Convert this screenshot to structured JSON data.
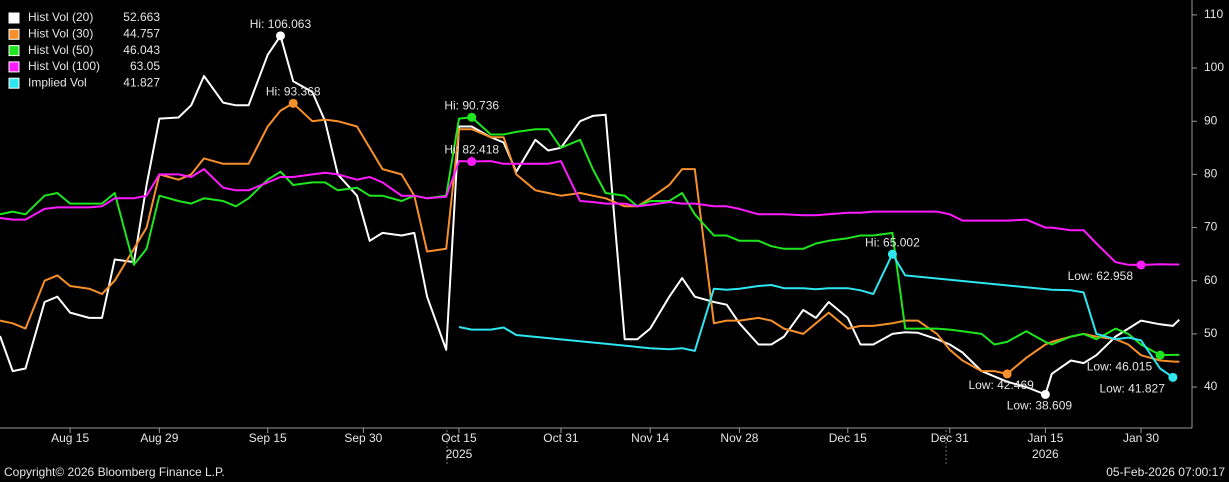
{
  "chart_data": {
    "type": "line",
    "x": [
      "2025-08-04",
      "2025-08-06",
      "2025-08-08",
      "2025-08-11",
      "2025-08-13",
      "2025-08-15",
      "2025-08-18",
      "2025-08-20",
      "2025-08-22",
      "2025-08-25",
      "2025-08-27",
      "2025-08-29",
      "2025-09-01",
      "2025-09-03",
      "2025-09-05",
      "2025-09-08",
      "2025-09-10",
      "2025-09-12",
      "2025-09-15",
      "2025-09-17",
      "2025-09-19",
      "2025-09-22",
      "2025-09-24",
      "2025-09-26",
      "2025-09-29",
      "2025-10-01",
      "2025-10-03",
      "2025-10-06",
      "2025-10-08",
      "2025-10-10",
      "2025-10-13",
      "2025-10-15",
      "2025-10-17",
      "2025-10-20",
      "2025-10-22",
      "2025-10-24",
      "2025-10-27",
      "2025-10-29",
      "2025-10-31",
      "2025-11-03",
      "2025-11-05",
      "2025-11-07",
      "2025-11-10",
      "2025-11-12",
      "2025-11-14",
      "2025-11-17",
      "2025-11-19",
      "2025-11-21",
      "2025-11-24",
      "2025-11-26",
      "2025-11-28",
      "2025-12-01",
      "2025-12-03",
      "2025-12-05",
      "2025-12-08",
      "2025-12-10",
      "2025-12-12",
      "2025-12-15",
      "2025-12-17",
      "2025-12-19",
      "2025-12-22",
      "2025-12-24",
      "2025-12-26",
      "2025-12-29",
      "2025-12-31",
      "2026-01-02",
      "2026-01-05",
      "2026-01-07",
      "2026-01-09",
      "2026-01-12",
      "2026-01-15",
      "2026-01-16",
      "2026-01-19",
      "2026-01-21",
      "2026-01-23",
      "2026-01-26",
      "2026-01-28",
      "2026-01-30",
      "2026-02-02",
      "2026-02-04",
      "2026-02-05"
    ],
    "xlim": [
      "2025-08-04",
      "2026-02-07"
    ],
    "xticks": [
      {
        "value": "2025-08-15",
        "label": "Aug 15"
      },
      {
        "value": "2025-08-29",
        "label": "Aug 29"
      },
      {
        "value": "2025-09-15",
        "label": "Sep 15"
      },
      {
        "value": "2025-09-30",
        "label": "Sep 30"
      },
      {
        "value": "2025-10-15",
        "label": "Oct 15"
      },
      {
        "value": "2025-10-31",
        "label": "Oct 31"
      },
      {
        "value": "2025-11-14",
        "label": "Nov 14"
      },
      {
        "value": "2025-11-28",
        "label": "Nov 28"
      },
      {
        "value": "2025-12-15",
        "label": "Dec 15"
      },
      {
        "value": "2025-12-31",
        "label": "Dec 31"
      },
      {
        "value": "2026-01-15",
        "label": "Jan 15"
      },
      {
        "value": "2026-01-30",
        "label": "Jan 30"
      }
    ],
    "x_year_labels": [
      {
        "value": "2025-10-15",
        "label": "2025"
      },
      {
        "value": "2026-01-15",
        "label": "2026"
      }
    ],
    "ylim": [
      32.3,
      112.8
    ],
    "yticks": [
      40,
      50,
      60,
      70,
      80,
      90,
      100,
      110
    ],
    "y_axis_side": "right",
    "series": [
      {
        "name": "Hist Vol (20)",
        "color": "#ffffff",
        "values": [
          49.6,
          43,
          43.5,
          56,
          57,
          54,
          53,
          53,
          64,
          63.5,
          78,
          90.5,
          90.7,
          93,
          98.5,
          93.5,
          93,
          93,
          102.5,
          106.063,
          97.5,
          95.5,
          90,
          80,
          76,
          67.5,
          69,
          68.5,
          69,
          57,
          47,
          89,
          89,
          87,
          86,
          80.5,
          86.5,
          84.5,
          85,
          90,
          91,
          91.2,
          49,
          49,
          51,
          57,
          60.5,
          57,
          56,
          55.5,
          52,
          48,
          48,
          49.5,
          54.5,
          53,
          56,
          53,
          48,
          48,
          50,
          50.3,
          50.2,
          49,
          48,
          46.5,
          43,
          42,
          41,
          40,
          38.609,
          42.5,
          45,
          44.5,
          46,
          49.5,
          51,
          52.5,
          51.8,
          51.5,
          52.663
        ],
        "markers": [
          {
            "x": "2025-09-17",
            "y": 106.063,
            "text": "Hi: 106.063"
          },
          {
            "x": "2026-01-15",
            "y": 38.609,
            "text": "Low: 38.609"
          }
        ]
      },
      {
        "name": "Hist Vol (30)",
        "color": "#f7902a",
        "values": [
          52.5,
          52,
          51,
          60,
          61,
          59,
          58.5,
          57.5,
          60,
          66,
          70,
          80,
          79,
          80,
          83,
          82,
          82,
          82,
          89,
          92,
          93.368,
          90,
          90.3,
          90,
          89,
          85,
          81,
          80,
          76,
          65.5,
          66,
          88.5,
          88.5,
          87,
          87,
          80,
          77,
          76.5,
          76,
          76.5,
          76,
          75.5,
          74,
          74,
          75.5,
          78,
          81,
          81,
          52,
          52.5,
          52.5,
          53,
          52.5,
          51,
          50,
          52,
          54,
          51,
          51.5,
          51.5,
          52,
          52.5,
          52.5,
          50,
          47,
          45,
          43,
          43,
          42.469,
          45.5,
          48,
          48.5,
          49.5,
          50,
          49.5,
          49,
          48,
          46,
          45,
          44.8,
          44.757
        ],
        "markers": [
          {
            "x": "2025-09-19",
            "y": 93.368,
            "text": "Hi: 93.368"
          },
          {
            "x": "2026-01-09",
            "y": 42.469,
            "text": "Low: 42.469"
          }
        ]
      },
      {
        "name": "Hist Vol (50)",
        "color": "#1ee61e",
        "values": [
          72.5,
          73,
          72.5,
          76,
          76.5,
          74.5,
          74.5,
          74.5,
          76.5,
          63,
          66,
          76,
          75,
          74.5,
          75.5,
          75,
          74,
          75.5,
          79,
          80.5,
          78,
          78.5,
          78.5,
          77,
          77.5,
          76,
          76,
          75,
          76,
          75.5,
          76,
          90.5,
          90.736,
          87.5,
          87.5,
          88,
          88.5,
          88.5,
          85,
          86.5,
          81,
          76.5,
          76,
          74,
          75,
          75,
          76.5,
          72.5,
          68.5,
          68.5,
          67.5,
          67.5,
          66.5,
          66,
          66,
          67,
          67.5,
          68,
          68.5,
          68.5,
          69,
          51,
          51,
          51,
          50.8,
          50.5,
          50,
          48,
          48.5,
          50.5,
          48.5,
          48,
          49.5,
          50,
          49,
          51,
          50,
          48,
          46.015,
          46.04,
          46.043
        ],
        "markers": [
          {
            "x": "2025-10-17",
            "y": 90.736,
            "text": "Hi: 90.736"
          },
          {
            "x": "2026-02-02",
            "y": 46.015,
            "text": "Low: 46.015"
          }
        ]
      },
      {
        "name": "Hist Vol (100)",
        "color": "#ff1aff",
        "values": [
          71.8,
          71.5,
          71.5,
          73.5,
          73.8,
          73.8,
          73.8,
          74,
          75.5,
          75.5,
          76,
          80,
          80,
          79.5,
          81,
          77.5,
          77,
          77,
          78.5,
          79.5,
          79.5,
          80,
          80.3,
          80,
          79,
          79.5,
          78.5,
          76,
          76,
          75.5,
          75.8,
          82.5,
          82.418,
          82.5,
          82,
          82,
          82,
          82,
          82.5,
          75,
          74.8,
          74.5,
          74.5,
          74,
          74.3,
          74.8,
          74.5,
          74.5,
          74,
          74,
          73.5,
          72.5,
          72.5,
          72.5,
          72.3,
          72.3,
          72.5,
          72.8,
          72.8,
          73,
          73,
          73,
          73,
          73,
          72.5,
          71.3,
          71.3,
          71.3,
          71.3,
          71.5,
          70,
          70,
          69.5,
          69.5,
          67,
          63.5,
          63,
          62.958,
          63.1,
          63.05,
          63.05
        ],
        "markers": [
          {
            "x": "2025-10-17",
            "y": 82.418,
            "text": "Hi: 82.418"
          },
          {
            "x": "2026-01-30",
            "y": 62.958,
            "text": "Low: 62.958"
          }
        ]
      },
      {
        "name": "Implied Vol",
        "color": "#2ee6f0",
        "x": [
          "2025-10-15",
          "2025-10-17",
          "2025-10-20",
          "2025-10-22",
          "2025-10-24",
          "2025-11-14",
          "2025-11-17",
          "2025-11-19",
          "2025-11-21",
          "2025-11-24",
          "2025-11-26",
          "2025-11-28",
          "2025-12-01",
          "2025-12-03",
          "2025-12-05",
          "2025-12-08",
          "2025-12-10",
          "2025-12-12",
          "2025-12-15",
          "2025-12-17",
          "2025-12-19",
          "2025-12-22",
          "2025-12-24",
          "2026-01-16",
          "2026-01-19",
          "2026-01-21",
          "2026-01-23",
          "2026-01-26",
          "2026-01-28",
          "2026-01-30",
          "2026-02-02",
          "2026-02-04"
        ],
        "values": [
          51.3,
          50.8,
          50.8,
          51.2,
          49.8,
          47.3,
          47.1,
          47.3,
          46.8,
          58.5,
          58.3,
          58.5,
          59,
          59.2,
          58.6,
          58.6,
          58.4,
          58.6,
          58.6,
          58.2,
          57.5,
          65.002,
          61,
          58.3,
          58.2,
          57.8,
          50,
          49,
          49.3,
          48.8,
          43.5,
          41.827
        ],
        "markers": [
          {
            "x": "2025-12-22",
            "y": 65.002,
            "text": "Hi: 65.002"
          },
          {
            "x": "2026-02-04",
            "y": 41.827,
            "text": "Low: 41.827"
          }
        ]
      }
    ]
  },
  "footer": {
    "left": "Copyright© 2026 Bloomberg Finance L.P.",
    "right": "05-Feb-2026 07:00:17"
  }
}
